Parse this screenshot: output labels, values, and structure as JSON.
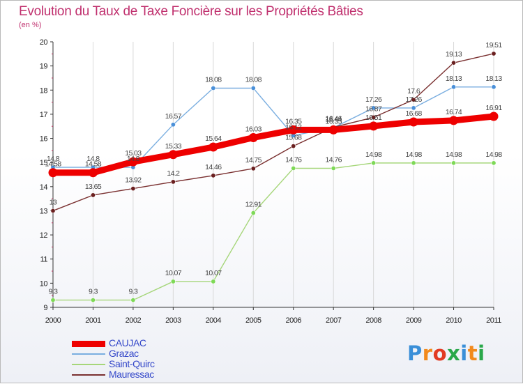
{
  "header": {
    "title": "Evolution du Taux de Taxe Foncière sur les Propriétés Bâties",
    "unit": "(en %)"
  },
  "logo": {
    "text": "Proxiti",
    "colors": [
      "#3a8fd8",
      "#f28a1c",
      "#e23a22",
      "#2aa84a",
      "#3a8fd8",
      "#f28a1c",
      "#2aa84a"
    ]
  },
  "chart_data": {
    "type": "line",
    "title": "Evolution du Taux de Taxe Foncière sur les Propriétés Bâties",
    "ylabel": "(en %)",
    "xlabel": "",
    "x": [
      "2000",
      "2001",
      "2002",
      "2003",
      "2004",
      "2005",
      "2006",
      "2007",
      "2008",
      "2009",
      "2010",
      "2011"
    ],
    "ylim": [
      9,
      20
    ],
    "yticks": [
      "9",
      "10",
      "11",
      "12",
      "13",
      "14",
      "15",
      "16",
      "17",
      "18",
      "19",
      "20"
    ],
    "grid": "vertical",
    "series": [
      {
        "name": "Saint-Quirc",
        "color": "#a6d67a",
        "marker": "#7ed957",
        "values": [
          9.3,
          9.3,
          9.3,
          10.07,
          10.07,
          12.91,
          14.76,
          14.76,
          14.98,
          14.98,
          14.98,
          14.98
        ],
        "labels": [
          "9.3",
          "9.3",
          "9.3",
          "10.07",
          "10.07",
          "12.91",
          "14.76",
          "14.76",
          "14.98",
          "14.98",
          "14.98",
          "14.98"
        ]
      },
      {
        "name": "Grazac",
        "color": "#7aaee0",
        "marker": "#4a90d9",
        "values": [
          14.8,
          14.8,
          14.8,
          16.57,
          18.08,
          18.08,
          16.12,
          16.44,
          17.26,
          17.26,
          18.13,
          18.13
        ],
        "labels": [
          "14.8",
          "14.8",
          "14.8",
          "16.57",
          "18.08",
          "18.08",
          "16.12",
          "16.44",
          "17.26",
          "17.26",
          "18.13",
          "18.13"
        ]
      },
      {
        "name": "Mauressac",
        "color": "#7a3030",
        "marker": "#6a1f1f",
        "values": [
          13,
          13.65,
          13.92,
          14.2,
          14.46,
          14.75,
          15.68,
          16.46,
          16.87,
          17.6,
          19.13,
          19.51
        ],
        "labels": [
          "13",
          "13.65",
          "13.92",
          "14.2",
          "14.46",
          "14.75",
          "15.68",
          "16.46",
          "16.87",
          "17.6",
          "19.13",
          "19.51"
        ]
      },
      {
        "name": "CAUJAC",
        "color": "#ee0000",
        "marker": "#ee0000",
        "values": [
          14.58,
          14.58,
          15.03,
          15.33,
          15.64,
          16.03,
          16.35,
          16.35,
          16.51,
          16.68,
          16.74,
          16.91
        ],
        "labels": [
          "14.58",
          "14.58",
          "15.03",
          "15.33",
          "15.64",
          "16.03",
          "16.35",
          "16.35",
          "16.51",
          "16.68",
          "16.74",
          "16.91"
        ]
      }
    ],
    "legend": [
      {
        "name": "CAUJAC",
        "color": "#ee0000"
      },
      {
        "name": "Grazac",
        "color": "#7aaee0"
      },
      {
        "name": "Saint-Quirc",
        "color": "#a6d67a"
      },
      {
        "name": "Mauressac",
        "color": "#7a3030"
      }
    ]
  }
}
